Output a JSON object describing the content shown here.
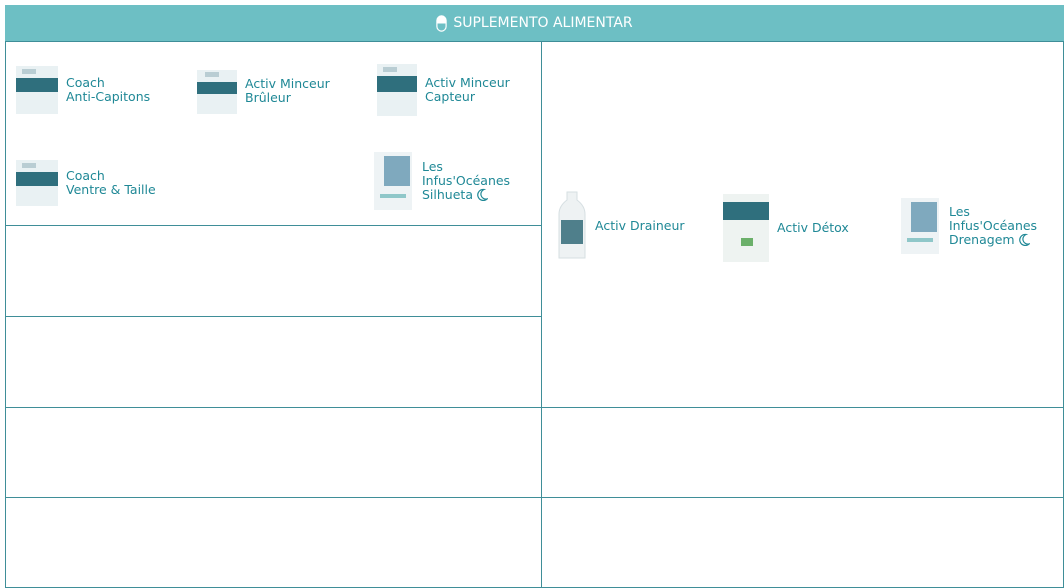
{
  "header": {
    "title": "SUPLEMENTO ALIMENTAR"
  },
  "left_products": [
    {
      "lines": [
        "Coach",
        "Anti-Capitons"
      ]
    },
    {
      "lines": [
        "Activ Minceur",
        "Brûleur"
      ]
    },
    {
      "lines": [
        "Activ Minceur",
        "Capteur"
      ]
    },
    {
      "lines": [
        "Coach",
        "Ventre & Taille"
      ]
    },
    {
      "lines": [
        "Les",
        "Infus'Océanes",
        "Silhueta"
      ]
    }
  ],
  "right_products": [
    {
      "lines": [
        "Activ Draineur"
      ]
    },
    {
      "lines": [
        "Activ Détox"
      ]
    },
    {
      "lines": [
        "Les",
        "Infus'Océanes",
        "Drenagem"
      ]
    }
  ]
}
